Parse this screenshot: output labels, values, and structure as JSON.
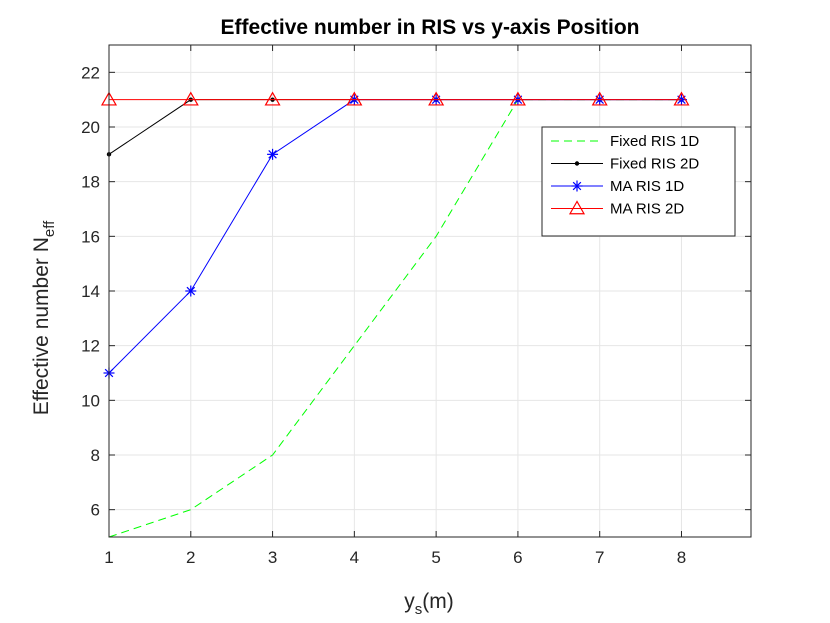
{
  "chart_data": {
    "type": "line",
    "title": "Effective number in RIS vs y-axis Position",
    "xlabel": {
      "base": "y",
      "sub": "s",
      "rest": "(m)"
    },
    "ylabel": {
      "base": "Effective number N",
      "sub": "eff"
    },
    "xlim": [
      1,
      8.85
    ],
    "ylim": [
      5,
      23
    ],
    "xticks": [
      1,
      2,
      3,
      4,
      5,
      6,
      7,
      8
    ],
    "yticks": [
      6,
      8,
      10,
      12,
      14,
      16,
      18,
      20,
      22
    ],
    "grid": true,
    "legend_position": "top-right",
    "series": [
      {
        "name": "Fixed RIS 1D",
        "color": "#00ff00",
        "style": "dashed",
        "marker": "none",
        "x": [
          1,
          2,
          3,
          4,
          5,
          6,
          7,
          8
        ],
        "y": [
          5,
          6,
          8,
          12,
          16,
          21,
          21,
          21
        ]
      },
      {
        "name": "Fixed RIS 2D",
        "color": "#000000",
        "style": "solid",
        "marker": "dot",
        "x": [
          1,
          2,
          3,
          4,
          5,
          6,
          7,
          8
        ],
        "y": [
          19,
          21,
          21,
          21,
          21,
          21,
          21,
          21
        ]
      },
      {
        "name": "MA RIS 1D",
        "color": "#0000ff",
        "style": "solid",
        "marker": "asterisk",
        "x": [
          1,
          2,
          3,
          4,
          5,
          6,
          7,
          8
        ],
        "y": [
          11,
          14,
          19,
          21,
          21,
          21,
          21,
          21
        ]
      },
      {
        "name": "MA RIS 2D",
        "color": "#ff0000",
        "style": "solid",
        "marker": "triangle",
        "x": [
          1,
          2,
          3,
          4,
          5,
          6,
          7,
          8
        ],
        "y": [
          21,
          21,
          21,
          21,
          21,
          21,
          21,
          21
        ]
      }
    ]
  }
}
